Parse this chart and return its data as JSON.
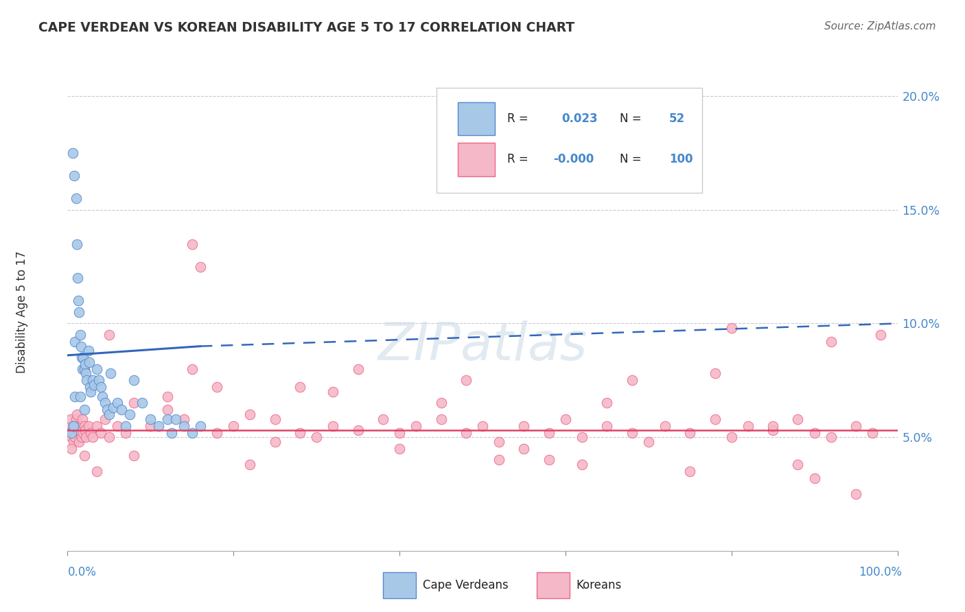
{
  "title": "CAPE VERDEAN VS KOREAN DISABILITY AGE 5 TO 17 CORRELATION CHART",
  "source": "Source: ZipAtlas.com",
  "ylabel": "Disability Age 5 to 17",
  "blue_color": "#a8c8e8",
  "pink_color": "#f4b8c8",
  "blue_line_color": "#3366bb",
  "pink_line_color": "#dd4466",
  "blue_edge_color": "#5588cc",
  "pink_edge_color": "#ee6688",
  "watermark": "ZIPatlas",
  "legend_r_blue": "0.023",
  "legend_n_blue": "52",
  "legend_r_pink": "-0.000",
  "legend_n_pink": "100",
  "cape_verdean_x": [
    0.5,
    0.6,
    0.7,
    0.8,
    0.9,
    1.0,
    1.1,
    1.2,
    1.3,
    1.4,
    1.5,
    1.6,
    1.7,
    1.8,
    1.9,
    2.0,
    2.1,
    2.2,
    2.3,
    2.5,
    2.6,
    2.7,
    2.8,
    3.0,
    3.2,
    3.5,
    3.8,
    4.0,
    4.2,
    4.5,
    4.8,
    5.0,
    5.2,
    5.5,
    6.0,
    6.5,
    7.0,
    7.5,
    8.0,
    9.0,
    10.0,
    11.0,
    12.0,
    12.5,
    13.0,
    14.0,
    15.0,
    16.0,
    0.7,
    0.9,
    1.5,
    2.0
  ],
  "cape_verdean_y": [
    5.2,
    17.5,
    5.5,
    16.5,
    9.2,
    15.5,
    13.5,
    12.0,
    11.0,
    10.5,
    9.5,
    9.0,
    8.5,
    8.0,
    8.5,
    8.0,
    8.2,
    7.8,
    7.5,
    8.8,
    8.3,
    7.2,
    7.0,
    7.5,
    7.3,
    8.0,
    7.5,
    7.2,
    6.8,
    6.5,
    6.2,
    6.0,
    7.8,
    6.3,
    6.5,
    6.2,
    5.5,
    6.0,
    7.5,
    6.5,
    5.8,
    5.5,
    5.8,
    5.2,
    5.8,
    5.5,
    5.2,
    5.5,
    5.5,
    6.8,
    6.8,
    6.2
  ],
  "korean_x": [
    0.2,
    0.3,
    0.4,
    0.5,
    0.6,
    0.7,
    0.8,
    0.9,
    1.0,
    1.1,
    1.2,
    1.3,
    1.4,
    1.5,
    1.6,
    1.7,
    1.8,
    1.9,
    2.0,
    2.1,
    2.2,
    2.5,
    2.8,
    3.0,
    3.5,
    4.0,
    4.5,
    5.0,
    6.0,
    7.0,
    8.0,
    10.0,
    12.0,
    14.0,
    15.0,
    16.0,
    18.0,
    20.0,
    22.0,
    25.0,
    28.0,
    30.0,
    32.0,
    35.0,
    38.0,
    40.0,
    42.0,
    45.0,
    48.0,
    50.0,
    52.0,
    55.0,
    58.0,
    60.0,
    62.0,
    65.0,
    68.0,
    70.0,
    72.0,
    75.0,
    78.0,
    80.0,
    82.0,
    85.0,
    88.0,
    90.0,
    92.0,
    95.0,
    97.0,
    98.0,
    15.0,
    32.0,
    48.0,
    65.0,
    80.0,
    92.0,
    5.0,
    18.0,
    35.0,
    52.0,
    68.0,
    85.0,
    0.5,
    3.5,
    8.0,
    22.0,
    40.0,
    58.0,
    75.0,
    90.0,
    12.0,
    28.0,
    45.0,
    62.0,
    78.0,
    95.0,
    2.0,
    25.0,
    55.0,
    88.0
  ],
  "korean_y": [
    5.5,
    5.2,
    5.8,
    5.0,
    5.3,
    4.8,
    5.5,
    5.0,
    5.8,
    6.0,
    5.3,
    5.5,
    4.8,
    5.2,
    5.5,
    5.0,
    5.8,
    5.2,
    5.5,
    5.3,
    5.0,
    5.5,
    5.2,
    5.0,
    5.5,
    5.2,
    5.8,
    5.0,
    5.5,
    5.2,
    6.5,
    5.5,
    6.2,
    5.8,
    13.5,
    12.5,
    5.2,
    5.5,
    6.0,
    5.8,
    5.2,
    5.0,
    5.5,
    5.3,
    5.8,
    5.2,
    5.5,
    5.8,
    5.2,
    5.5,
    4.8,
    5.5,
    5.2,
    5.8,
    5.0,
    5.5,
    5.2,
    4.8,
    5.5,
    5.2,
    5.8,
    5.0,
    5.5,
    5.3,
    5.8,
    5.2,
    5.0,
    5.5,
    5.2,
    9.5,
    8.0,
    7.0,
    7.5,
    6.5,
    9.8,
    9.2,
    9.5,
    7.2,
    8.0,
    4.0,
    7.5,
    5.5,
    4.5,
    3.5,
    4.2,
    3.8,
    4.5,
    4.0,
    3.5,
    3.2,
    6.8,
    7.2,
    6.5,
    3.8,
    7.8,
    2.5,
    4.2,
    4.8,
    4.5,
    3.8
  ]
}
